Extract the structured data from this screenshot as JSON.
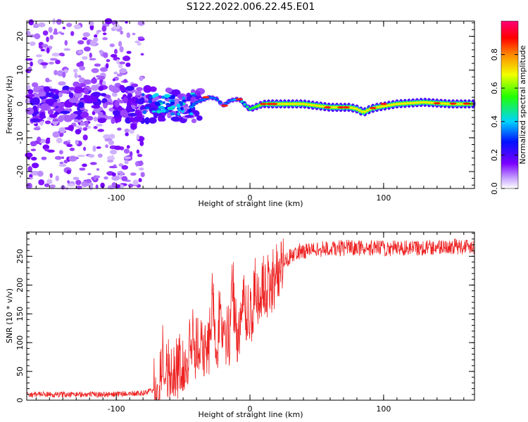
{
  "title": "S122.2022.006.22.45.E01",
  "colors": {
    "snr_line": "#ee2222",
    "spectro_low": "#7a00ff",
    "spectro_high": "#ff0000"
  },
  "chart_data": [
    {
      "type": "heatmap",
      "xlabel": "Height of straight line (km)",
      "ylabel": "Frequency (Hz)",
      "xlim": [
        -167,
        168
      ],
      "ylim": [
        -25,
        24.5
      ],
      "xticks": [
        -100,
        0,
        100
      ],
      "yticks": [
        -20,
        -10,
        0,
        10,
        20
      ],
      "xtick_labels": [
        "-100",
        "0",
        "100"
      ],
      "ytick_labels": [
        "-20",
        "-10",
        "0",
        "10",
        "20"
      ],
      "grid": false,
      "colorbar": {
        "label": "Normalized spectral amplitude",
        "range": [
          0,
          1
        ],
        "ticks": [
          0.0,
          0.2,
          0.4,
          0.6,
          0.8
        ],
        "tick_labels": [
          "0.0",
          "0.2",
          "0.4",
          "0.6",
          "0.8"
        ],
        "colormap": "rainbow (purple → blue → cyan → green → yellow → orange → red → magenta)"
      },
      "features": [
        {
          "region": "scattered low-amplitude noise",
          "x_range": [
            -167,
            -80
          ],
          "freq_range": [
            -25,
            24
          ],
          "amplitude": [
            0.05,
            0.3
          ]
        },
        {
          "region": "dense noise band",
          "x_range": [
            -167,
            -40
          ],
          "freq_range": [
            -5,
            5
          ],
          "amplitude": [
            0.3,
            0.5
          ]
        },
        {
          "region": "dominant spectral line",
          "x_range": [
            -40,
            168
          ],
          "freq_range": [
            -2,
            2
          ],
          "amplitude": [
            0.6,
            1.0
          ]
        }
      ],
      "ridge": [
        [
          -40,
          0.5
        ],
        [
          -30,
          2
        ],
        [
          -25,
          1.5
        ],
        [
          -20,
          -0.5
        ],
        [
          -15,
          1
        ],
        [
          -8,
          1.5
        ],
        [
          -3,
          -0.5
        ],
        [
          0,
          -1.5
        ],
        [
          10,
          0
        ],
        [
          20,
          0
        ],
        [
          40,
          0
        ],
        [
          60,
          -1
        ],
        [
          75,
          -1
        ],
        [
          80,
          -1.5
        ],
        [
          85,
          -2.5
        ],
        [
          90,
          -1.5
        ],
        [
          95,
          -1
        ],
        [
          110,
          0
        ],
        [
          130,
          0.5
        ],
        [
          150,
          0
        ],
        [
          168,
          0
        ]
      ]
    },
    {
      "type": "line",
      "xlabel": "Height of straight line (km)",
      "ylabel": "SNR (10 * v/v)",
      "xlim": [
        -167,
        168
      ],
      "ylim": [
        0,
        292
      ],
      "xticks": [
        -100,
        0,
        100
      ],
      "yticks": [
        0,
        50,
        100,
        150,
        200,
        250
      ],
      "xtick_labels": [
        "-100",
        "0",
        "100"
      ],
      "ytick_labels": [
        "0",
        "50",
        "100",
        "150",
        "200",
        "250"
      ],
      "grid": false,
      "series": [
        {
          "color": "#ee2222",
          "envelope": [
            {
              "x": -167,
              "y": 10
            },
            {
              "x": -140,
              "y": 10
            },
            {
              "x": -110,
              "y": 10
            },
            {
              "x": -80,
              "y": 12
            },
            {
              "x": -70,
              "y": 20
            },
            {
              "x": -65,
              "y": 45
            },
            {
              "x": -55,
              "y": 60
            },
            {
              "x": -45,
              "y": 80
            },
            {
              "x": -35,
              "y": 95
            },
            {
              "x": -25,
              "y": 105
            },
            {
              "x": -15,
              "y": 115
            },
            {
              "x": -5,
              "y": 135
            },
            {
              "x": 5,
              "y": 165
            },
            {
              "x": 15,
              "y": 205
            },
            {
              "x": 25,
              "y": 240
            },
            {
              "x": 35,
              "y": 258
            },
            {
              "x": 50,
              "y": 262
            },
            {
              "x": 75,
              "y": 265
            },
            {
              "x": 100,
              "y": 264
            },
            {
              "x": 130,
              "y": 265
            },
            {
              "x": 168,
              "y": 268
            }
          ],
          "peaks": [
            {
              "x": -65,
              "y": 95
            },
            {
              "x": -43,
              "y": 140
            },
            {
              "x": -28,
              "y": 200
            },
            {
              "x": -22,
              "y": 175
            },
            {
              "x": -13,
              "y": 220
            },
            {
              "x": -5,
              "y": 215
            },
            {
              "x": 4,
              "y": 205
            },
            {
              "x": 10,
              "y": 218
            }
          ]
        }
      ]
    }
  ]
}
